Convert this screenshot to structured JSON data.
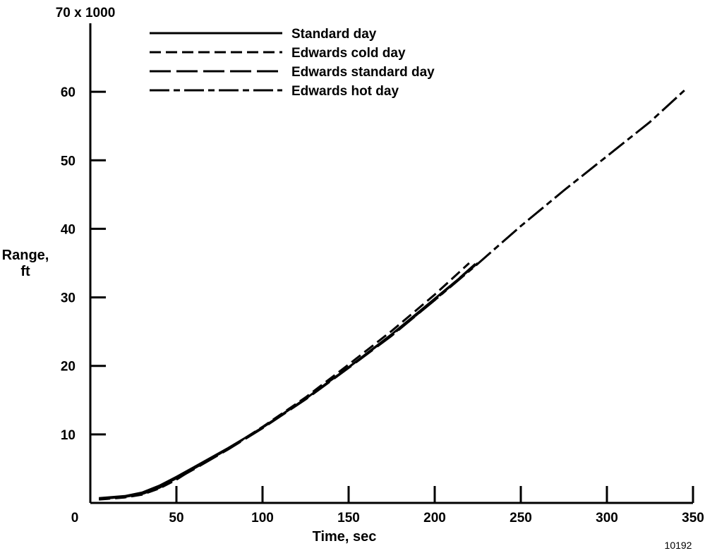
{
  "chart_data": {
    "type": "line",
    "title": "",
    "xlabel": "Time, sec",
    "ylabel": [
      "Range,",
      "ft"
    ],
    "y_multiplier_label": "70 x 1000",
    "xlim": [
      0,
      350
    ],
    "ylim": [
      0,
      70
    ],
    "x_ticks": [
      {
        "value": 0,
        "label": "0"
      },
      {
        "value": 50,
        "label": "50"
      },
      {
        "value": 100,
        "label": "100"
      },
      {
        "value": 150,
        "label": "150"
      },
      {
        "value": 200,
        "label": "200"
      },
      {
        "value": 250,
        "label": "250"
      },
      {
        "value": 300,
        "label": "300"
      },
      {
        "value": 350,
        "label": "350"
      }
    ],
    "y_ticks": [
      {
        "value": 10,
        "label": "10"
      },
      {
        "value": 20,
        "label": "20"
      },
      {
        "value": 30,
        "label": "30"
      },
      {
        "value": 40,
        "label": "40"
      },
      {
        "value": 50,
        "label": "50"
      },
      {
        "value": 60,
        "label": "60"
      }
    ],
    "grid": false,
    "legend_position": "top-left",
    "series": [
      {
        "name": "Standard day",
        "dash": "solid",
        "x": [
          5,
          10,
          20,
          30,
          40,
          50,
          60,
          80,
          100,
          125,
          150,
          175,
          200,
          225
        ],
        "y": [
          0.7,
          0.8,
          1.0,
          1.5,
          2.5,
          3.8,
          5.2,
          8.0,
          11.0,
          15.2,
          19.8,
          24.6,
          29.8,
          35.0
        ]
      },
      {
        "name": "Edwards cold day",
        "dash": "medium",
        "x": [
          5,
          10,
          20,
          30,
          40,
          50,
          60,
          80,
          100,
          125,
          150,
          175,
          200,
          220
        ],
        "y": [
          0.5,
          0.6,
          0.8,
          1.2,
          2.1,
          3.4,
          5.0,
          7.9,
          11.1,
          15.4,
          20.2,
          25.1,
          30.4,
          35.0
        ]
      },
      {
        "name": "Edwards standard day",
        "dash": "long",
        "x": [
          5,
          10,
          20,
          30,
          40,
          50,
          60,
          80,
          100,
          125,
          150,
          175,
          200,
          225
        ],
        "y": [
          0.6,
          0.7,
          0.9,
          1.3,
          2.2,
          3.5,
          4.9,
          7.8,
          10.9,
          15.1,
          19.7,
          24.4,
          29.6,
          35.2
        ]
      },
      {
        "name": "Edwards hot day",
        "dash": "long-short",
        "x": [
          5,
          10,
          20,
          30,
          40,
          50,
          60,
          80,
          100,
          125,
          150,
          175,
          200,
          225,
          250,
          275,
          300,
          325,
          345
        ],
        "y": [
          0.6,
          0.7,
          0.9,
          1.3,
          2.3,
          3.6,
          5.0,
          7.9,
          11.0,
          15.2,
          19.8,
          24.5,
          29.6,
          34.9,
          40.4,
          45.6,
          50.6,
          55.6,
          60.2
        ]
      }
    ]
  },
  "figure_id": "10192"
}
